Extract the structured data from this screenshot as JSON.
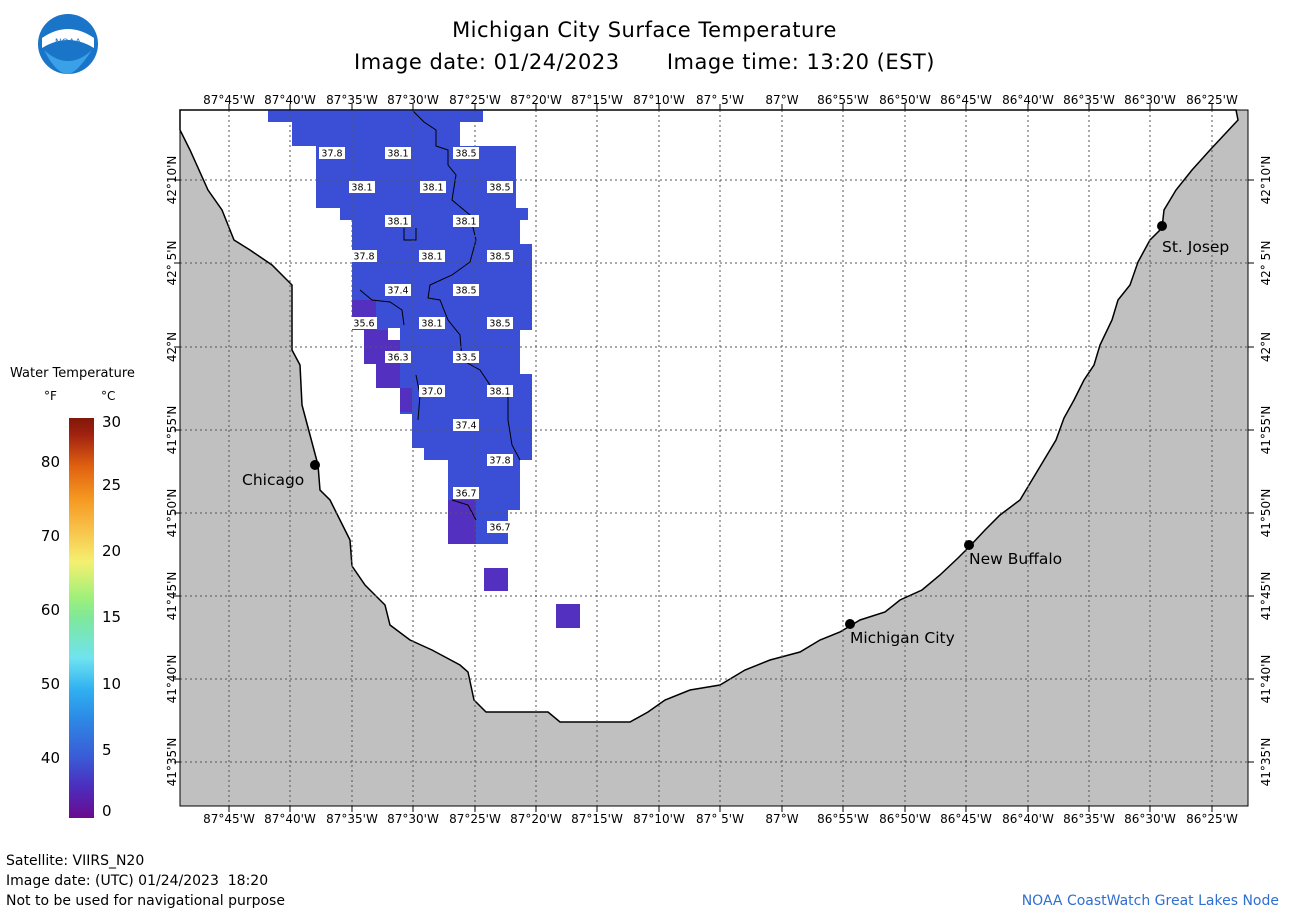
{
  "header": {
    "title": "Michigan City Surface Temperature",
    "image_date": "Image date: 01/24/2023",
    "image_time": "Image time: 13:20 (EST)"
  },
  "logo": {
    "text": "NOAA",
    "icon": "noaa-logo-icon"
  },
  "map": {
    "lon_labels": [
      "87°45'W",
      "87°40'W",
      "87°35'W",
      "87°30'W",
      "87°25'W",
      "87°20'W",
      "87°15'W",
      "87°10'W",
      "87° 5'W",
      "87°W",
      "86°55'W",
      "86°50'W",
      "86°45'W",
      "86°40'W",
      "86°35'W",
      "86°30'W",
      "86°25'W"
    ],
    "lat_labels": [
      "42°10'N",
      "42° 5'N",
      "42°N",
      "41°55'N",
      "41°50'N",
      "41°45'N",
      "41°40'N",
      "41°35'N"
    ],
    "cities": [
      {
        "name": "Chicago"
      },
      {
        "name": "St. Josep"
      },
      {
        "name": "New Buffalo"
      },
      {
        "name": "Michigan City"
      }
    ],
    "sst_labels": [
      "37.8",
      "38.1",
      "38.5",
      "38.1",
      "38.1",
      "38.5",
      "38.1",
      "38.1",
      "37.8",
      "38.1",
      "38.5",
      "37.4",
      "38.5",
      "35.6",
      "38.1",
      "38.5",
      "36.3",
      "33.5",
      "37.0",
      "38.1",
      "37.4",
      "37.8",
      "36.7",
      "36.7"
    ],
    "colors": {
      "land": "#c0c0c0",
      "water": "#ffffff",
      "sst_warm": "#3a4fd6",
      "sst_cool": "#5330c0"
    }
  },
  "legend": {
    "title": "Water Temperature",
    "unit_f": "°F",
    "unit_c": "°C",
    "f_ticks": [
      "80",
      "70",
      "60",
      "50",
      "40"
    ],
    "c_ticks": [
      "30",
      "25",
      "20",
      "15",
      "10",
      "5",
      "0"
    ]
  },
  "footer": {
    "satellite": "Satellite: VIIRS_N20",
    "utc_date": "Image date: (UTC) 01/24/2023  18:20",
    "disclaimer": "Not to be used for navigational purpose",
    "credit": "NOAA CoastWatch Great Lakes Node"
  }
}
